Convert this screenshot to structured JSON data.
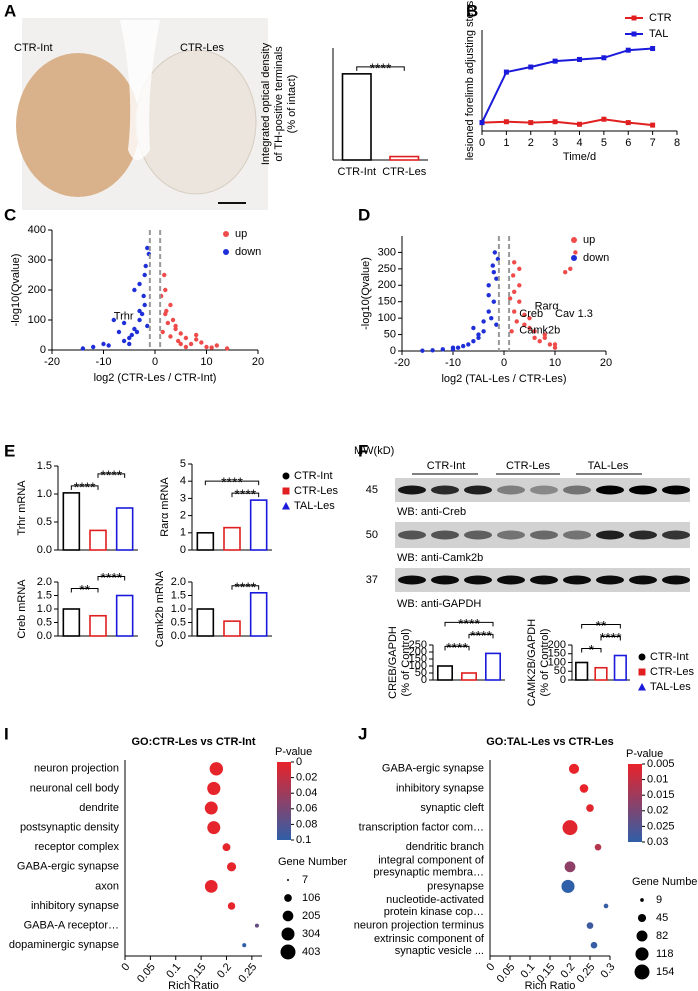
{
  "panel_labels": [
    "A",
    "B",
    "C",
    "D",
    "E",
    "F",
    "I",
    "J"
  ],
  "micrograph": {
    "left": "CTR-Int",
    "right": "CTR-Les"
  },
  "blot": {
    "mw_title": "MW(kD)",
    "groups": [
      "CTR-Int",
      "CTR-Les",
      "TAL-Les"
    ],
    "markers": [
      45,
      50,
      37
    ],
    "probes": [
      "WB: anti-Creb",
      "WB: anti-Camk2b",
      "WB: anti-GAPDH"
    ]
  },
  "chart_data": [
    {
      "type": "bar",
      "ylabel": [
        "Integrated optical density",
        "of TH-positive terminals",
        "(% of intact)"
      ],
      "categories": [
        "CTR-Int",
        "CTR-Les"
      ],
      "values": [
        100,
        4
      ],
      "colors": [
        "#000000",
        "#e02020"
      ],
      "ylim": [
        0,
        130
      ],
      "brackets": [
        {
          "from": 0,
          "to": 1,
          "label": "****"
        }
      ]
    },
    {
      "type": "line",
      "xlabel": "Time/d",
      "ylabel": "lesioned forelimb adjusting steps",
      "x": [
        0,
        1,
        2,
        3,
        4,
        5,
        6,
        7
      ],
      "series": [
        {
          "name": "CTR",
          "color": "#e02020",
          "values": [
            1,
            1.1,
            1,
            1.1,
            0.8,
            1.4,
            1,
            0.7
          ]
        },
        {
          "name": "TAL",
          "color": "#1a1adb",
          "values": [
            1,
            7,
            7.6,
            8.3,
            8.5,
            8.7,
            9.6,
            9.8
          ]
        }
      ],
      "xlim": [
        0,
        8
      ],
      "xticks": [
        0,
        1,
        2,
        3,
        4,
        5,
        6,
        7,
        8
      ],
      "ylim": [
        0,
        12
      ],
      "legend": "upper right"
    },
    {
      "type": "scatter",
      "xlabel": "log2 (CTR-Les / CTR-Int)",
      "ylabel": "-log10(Qvalue)",
      "xlim": [
        -20,
        20
      ],
      "xticks": [
        -20,
        -10,
        0,
        10,
        20
      ],
      "ylim": [
        0,
        400
      ],
      "yticks": [
        0,
        100,
        200,
        300,
        400
      ],
      "thresholds": [
        -1,
        1
      ],
      "legend": "upper right",
      "series": [
        {
          "name": "up",
          "color": "#ef4b4b",
          "x": [
            1.5,
            2,
            2.5,
            3,
            3.5,
            4,
            4.5,
            5,
            6,
            7,
            8,
            9,
            10,
            12,
            14,
            2,
            3,
            4,
            5,
            6,
            1.2,
            1.8,
            2.2,
            8,
            11
          ],
          "values": [
            60,
            120,
            90,
            45,
            100,
            70,
            30,
            55,
            40,
            20,
            35,
            25,
            10,
            15,
            5,
            200,
            150,
            80,
            20,
            10,
            180,
            250,
            130,
            50,
            8
          ]
        },
        {
          "name": "down",
          "color": "#1f2fd8",
          "x": [
            -1.5,
            -2,
            -2.5,
            -3,
            -3.5,
            -4,
            -4.5,
            -5,
            -6,
            -7,
            -8,
            -9,
            -10,
            -12,
            -14,
            -2,
            -3,
            -4,
            -1.2,
            -1.8,
            -2.2,
            -1.5,
            -6,
            -5,
            -3
          ],
          "values": [
            80,
            150,
            120,
            100,
            60,
            70,
            50,
            40,
            30,
            60,
            100,
            15,
            20,
            10,
            5,
            250,
            220,
            200,
            320,
            280,
            180,
            340,
            90,
            20,
            130
          ]
        }
      ],
      "annotations": [
        {
          "text": "Trhr",
          "x": -8,
          "y": 112
        }
      ]
    },
    {
      "type": "scatter",
      "xlabel": "log2 (TAL-Les / CTR-Les)",
      "ylabel": "-log10(Qvalue)",
      "xlim": [
        -20,
        20
      ],
      "xticks": [
        -20,
        -10,
        0,
        10,
        20
      ],
      "ylim": [
        0,
        350
      ],
      "yticks": [
        0,
        50,
        100,
        150,
        200,
        250,
        300
      ],
      "thresholds": [
        -1,
        1
      ],
      "legend": "upper right",
      "series": [
        {
          "name": "up",
          "color": "#ef4b4b",
          "x": [
            1.5,
            2,
            2.5,
            3,
            4,
            5,
            6,
            7,
            8,
            9,
            10,
            12,
            13,
            14,
            2,
            3,
            1.2,
            1.8,
            4,
            6,
            5,
            3,
            2,
            8,
            10
          ],
          "values": [
            60,
            120,
            90,
            150,
            80,
            70,
            40,
            30,
            50,
            20,
            20,
            240,
            250,
            300,
            180,
            200,
            160,
            230,
            110,
            60,
            100,
            250,
            270,
            40,
            10
          ]
        },
        {
          "name": "down",
          "color": "#1f2fd8",
          "x": [
            -1.5,
            -2,
            -2.5,
            -3,
            -4,
            -5,
            -6,
            -7,
            -8,
            -9,
            -10,
            -12,
            -14,
            -16,
            -2,
            -3,
            -1.2,
            -1.8,
            -2.2,
            -4,
            -5,
            -3,
            -6,
            -10,
            -1.5
          ],
          "values": [
            80,
            150,
            100,
            120,
            60,
            40,
            30,
            20,
            15,
            10,
            5,
            5,
            2,
            1,
            240,
            200,
            280,
            300,
            260,
            90,
            50,
            170,
            70,
            10,
            220
          ]
        }
      ],
      "annotations": [
        {
          "text": "Rarα",
          "x": 6,
          "y": 135
        },
        {
          "text": "Creb",
          "x": 3,
          "y": 112
        },
        {
          "text": "Cav 1.3",
          "x": 10,
          "y": 112
        },
        {
          "text": "Camk2b",
          "x": 3,
          "y": 62
        }
      ]
    },
    {
      "type": "bar",
      "ylabel": "Trhr mRNA",
      "values": [
        1.02,
        0.35,
        0.75
      ],
      "colors": [
        "#000000",
        "#e02020",
        "#1a1adb"
      ],
      "ylim": [
        0,
        1.5
      ],
      "yticks": [
        {
          "value": 0,
          "label": "0.0"
        },
        0.5,
        {
          "value": 1,
          "label": "1.0"
        },
        1.5
      ],
      "brackets": [
        {
          "from": 0,
          "to": 1,
          "label": "****"
        },
        {
          "from": 1,
          "to": 2,
          "label": "****"
        }
      ]
    },
    {
      "type": "bar",
      "ylabel": "Rarα mRNA",
      "values": [
        1,
        1.3,
        2.9
      ],
      "colors": [
        "#000000",
        "#e02020",
        "#1a1adb"
      ],
      "ylim": [
        0,
        5
      ],
      "yticks": [
        0,
        1,
        2,
        3,
        4,
        5
      ],
      "brackets": [
        {
          "from": 1,
          "to": 2,
          "label": "****"
        },
        {
          "from": 0,
          "to": 2,
          "label": "****"
        }
      ],
      "legend": [
        "CTR-Int",
        "CTR-Les",
        "TAL-Les"
      ]
    },
    {
      "type": "bar",
      "ylabel": "Creb mRNA",
      "values": [
        1,
        0.75,
        1.5
      ],
      "colors": [
        "#000000",
        "#e02020",
        "#1a1adb"
      ],
      "ylim": [
        0,
        2
      ],
      "yticks": [
        {
          "value": 0,
          "label": "0.0"
        },
        0.5,
        {
          "value": 1,
          "label": "1.0"
        },
        1.5,
        {
          "value": 2,
          "label": "2.0"
        }
      ],
      "brackets": [
        {
          "from": 0,
          "to": 1,
          "label": "**"
        },
        {
          "from": 1,
          "to": 2,
          "label": "****"
        }
      ]
    },
    {
      "type": "bar",
      "ylabel": "Camk2b mRNA",
      "values": [
        1,
        0.55,
        1.6
      ],
      "colors": [
        "#000000",
        "#e02020",
        "#1a1adb"
      ],
      "ylim": [
        0,
        2
      ],
      "yticks": [
        {
          "value": 0,
          "label": "0.0"
        },
        0.5,
        {
          "value": 1,
          "label": "1.0"
        },
        1.5,
        {
          "value": 2,
          "label": "2.0"
        }
      ],
      "brackets": [
        {
          "from": 1,
          "to": 2,
          "label": "****"
        }
      ]
    },
    {
      "type": "bar",
      "ylabel": [
        "CREB/GAPDH",
        "(% of Control)"
      ],
      "values": [
        100,
        50,
        190
      ],
      "colors": [
        "#000000",
        "#e02020",
        "#1a1adb"
      ],
      "ylim": [
        0,
        250
      ],
      "yticks": [
        0,
        50,
        100,
        150,
        200,
        250
      ],
      "brackets": [
        {
          "from": 0,
          "to": 1,
          "label": "****"
        },
        {
          "from": 1,
          "to": 2,
          "label": "****"
        },
        {
          "from": 0,
          "to": 2,
          "label": "****"
        }
      ]
    },
    {
      "type": "bar",
      "ylabel": [
        "CAMK2B/GAPDH",
        "(% of Control)"
      ],
      "values": [
        100,
        70,
        140
      ],
      "colors": [
        "#000000",
        "#e02020",
        "#1a1adb"
      ],
      "ylim": [
        0,
        200
      ],
      "yticks": [
        0,
        50,
        100,
        150,
        200
      ],
      "brackets": [
        {
          "from": 0,
          "to": 1,
          "label": "*"
        },
        {
          "from": 1,
          "to": 2,
          "label": "****"
        },
        {
          "from": 0,
          "to": 2,
          "label": "**"
        }
      ],
      "legend": [
        "CTR-Int",
        "CTR-Les",
        "TAL-Les"
      ]
    },
    {
      "type": "bubble",
      "title": "GO:CTR-Les vs CTR-Int",
      "xlabel": "Rich Ratio",
      "categories": [
        "neuron projection",
        "neuronal cell body",
        "dendrite",
        "postsynaptic density",
        "receptor complex",
        "GABA-ergic synapse",
        "axon",
        "inhibitory synapse",
        "GABA-A receptor…",
        "dopaminergic synapse"
      ],
      "values": [
        0.18,
        0.175,
        0.17,
        0.175,
        0.2,
        0.21,
        0.17,
        0.21,
        0.26,
        0.235
      ],
      "pvalues": [
        0.001,
        0.001,
        0.001,
        0.001,
        0.001,
        0.001,
        0.001,
        0.001,
        0.07,
        0.1
      ],
      "sizes": [
        320,
        310,
        300,
        300,
        110,
        150,
        290,
        100,
        30,
        30
      ],
      "xlim": [
        0,
        0.27
      ],
      "xticks": [
        0,
        0.05,
        0.1,
        0.15,
        0.2,
        0.25
      ],
      "color_title": "P-value",
      "clim": [
        0,
        0.1
      ],
      "cticks": [
        0,
        0.02,
        0.04,
        0.06,
        0.08,
        0.1
      ],
      "colorscale": [
        "#e8232a",
        "#2f5fa8"
      ],
      "size_title": "Gene Number",
      "size_ticks": [
        7,
        106,
        205,
        304,
        403
      ]
    },
    {
      "type": "bubble",
      "title": "GO:TAL-Les vs CTR-Les",
      "xlabel": "Rich Ratio",
      "categories": [
        "GABA-ergic synapse",
        "inhibitory synapse",
        "synaptic cleft",
        "transcription factor com…",
        "dendritic branch",
        [
          "integral component of",
          "presynaptic membra…"
        ],
        "presynapse",
        [
          "nucleotide-activated",
          "protein kinase cop…"
        ],
        "neuron projection terminus",
        [
          "extrinsic component of",
          "synaptic vesicle ..."
        ]
      ],
      "values": [
        0.21,
        0.235,
        0.25,
        0.2,
        0.27,
        0.2,
        0.195,
        0.29,
        0.25,
        0.26
      ],
      "pvalues": [
        0.005,
        0.005,
        0.006,
        0.006,
        0.012,
        0.017,
        0.03,
        0.029,
        0.028,
        0.029
      ],
      "sizes": [
        70,
        50,
        40,
        154,
        30,
        80,
        118,
        15,
        30,
        30
      ],
      "xlim": [
        0,
        0.3
      ],
      "xticks": [
        0,
        0.05,
        0.1,
        0.15,
        0.2,
        0.25,
        0.3
      ],
      "color_title": "P-value",
      "clim": [
        0.005,
        0.03
      ],
      "cticks": [
        0.005,
        0.01,
        0.015,
        0.02,
        0.025,
        0.03
      ],
      "colorscale": [
        "#e8232a",
        "#2f5fa8"
      ],
      "size_title": "Gene Number",
      "size_ticks": [
        9,
        45,
        82,
        118,
        154
      ]
    }
  ]
}
